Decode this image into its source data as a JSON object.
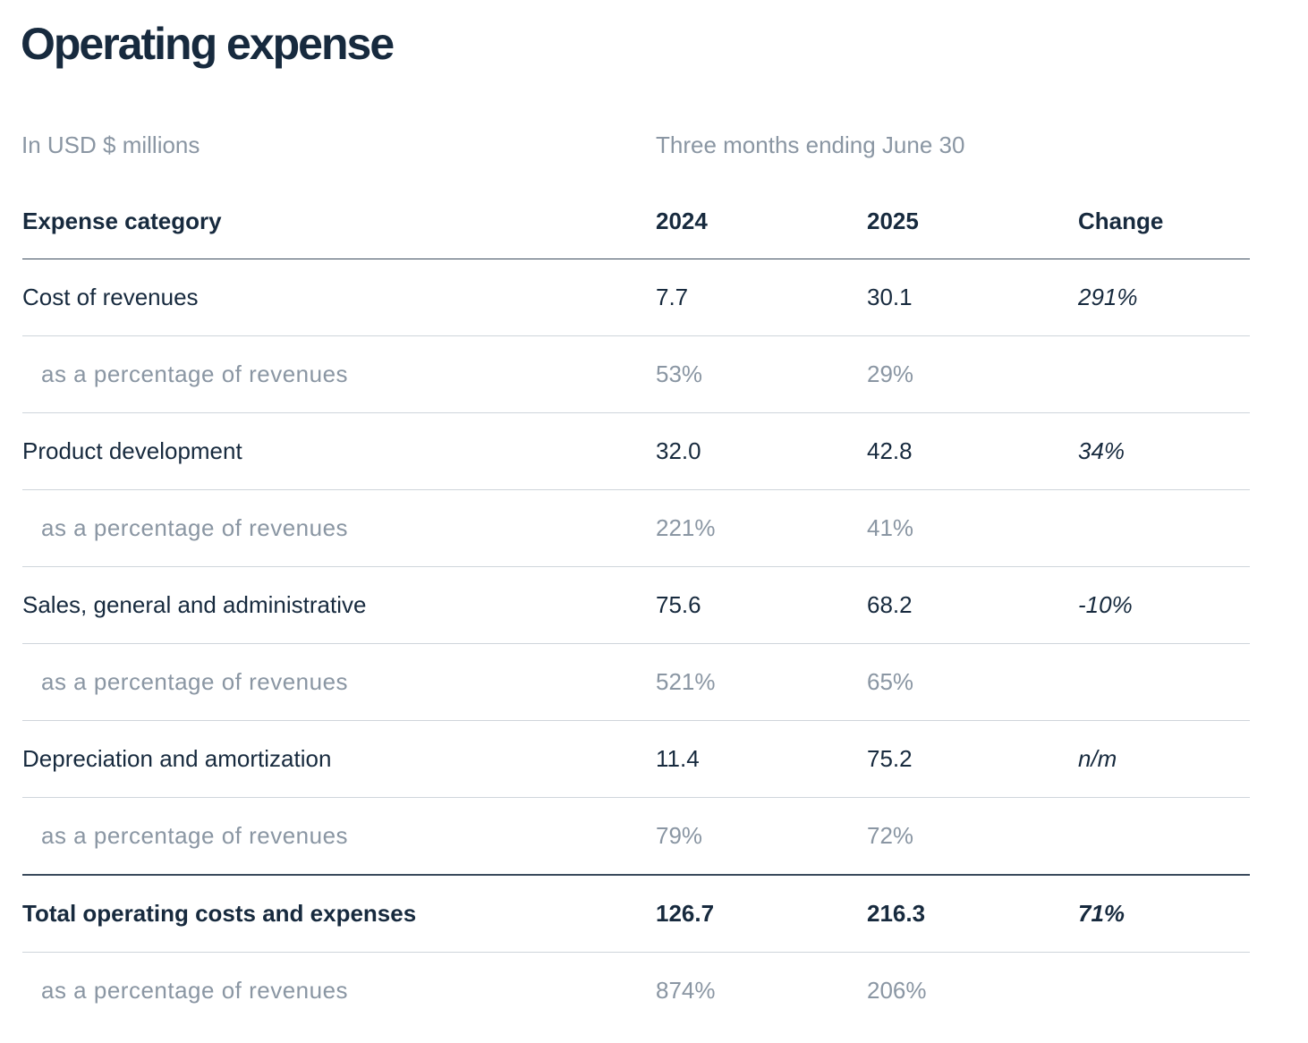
{
  "page": {
    "title": "Operating expense",
    "unit_note": "In USD $ millions",
    "period_note": "Three months ending June 30"
  },
  "table": {
    "headers": {
      "category": "Expense category",
      "y2024": "2024",
      "y2025": "2025",
      "change": "Change"
    },
    "rows": [
      {
        "label": "Cost of revenues",
        "y2024": "7.7",
        "y2025": "30.1",
        "change": "291%"
      },
      {
        "label": "as a percentage of revenues",
        "y2024": "53%",
        "y2025": "29%",
        "change": ""
      },
      {
        "label": "Product development",
        "y2024": "32.0",
        "y2025": "42.8",
        "change": "34%"
      },
      {
        "label": "as a percentage of revenues",
        "y2024": "221%",
        "y2025": "41%",
        "change": ""
      },
      {
        "label": "Sales, general and administrative",
        "y2024": "75.6",
        "y2025": "68.2",
        "change": "-10%"
      },
      {
        "label": "as a percentage of revenues",
        "y2024": "521%",
        "y2025": "65%",
        "change": ""
      },
      {
        "label": "Depreciation and amortization",
        "y2024": "11.4",
        "y2025": "75.2",
        "change": "n/m"
      },
      {
        "label": "as a percentage of revenues",
        "y2024": "79%",
        "y2025": "72%",
        "change": ""
      },
      {
        "label": "Total operating costs and expenses",
        "y2024": "126.7",
        "y2025": "216.3",
        "change": "71%"
      },
      {
        "label": "as a percentage of revenues",
        "y2024": "874%",
        "y2025": "206%",
        "change": ""
      }
    ]
  }
}
